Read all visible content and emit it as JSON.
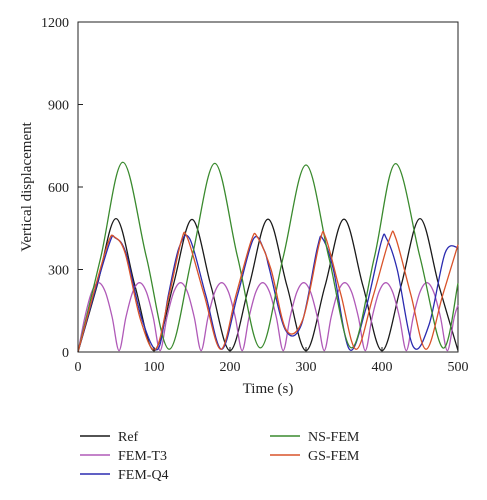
{
  "chart_data": {
    "type": "line",
    "xlabel": "Time (s)",
    "ylabel": "Vertical displacement",
    "xlim": [
      0,
      500
    ],
    "ylim": [
      0,
      1200
    ],
    "xticks": [
      0,
      100,
      200,
      300,
      400,
      500
    ],
    "yticks": [
      0,
      300,
      600,
      900,
      1200
    ],
    "grid": false,
    "legend_position": "bottom",
    "series": [
      {
        "name": "Ref",
        "color": "#1a1a1a",
        "x": [
          0,
          25,
          50,
          75,
          100,
          125,
          150,
          175,
          200,
          225,
          250,
          275,
          300,
          325,
          350,
          375,
          400,
          425,
          450,
          475,
          500
        ],
        "y": [
          0,
          240,
          485,
          240,
          5,
          240,
          482,
          240,
          5,
          240,
          483,
          240,
          5,
          240,
          483,
          240,
          5,
          240,
          485,
          240,
          5
        ]
      },
      {
        "name": "FEM-T3",
        "color": "#b05ab8",
        "x": [
          0,
          9,
          18,
          27,
          36,
          45,
          54,
          63,
          72,
          81,
          90,
          99,
          108,
          117,
          126,
          135,
          144,
          153,
          162,
          171,
          180,
          189,
          198,
          207,
          216,
          225,
          234,
          243,
          252,
          261,
          270,
          279,
          288,
          297,
          306,
          315,
          324,
          333,
          342,
          351,
          360,
          369,
          378,
          387,
          396,
          405,
          414,
          423,
          432,
          441,
          450,
          459,
          468,
          477,
          486,
          495,
          500
        ],
        "y": [
          0,
          126,
          218,
          252,
          218,
          126,
          5,
          126,
          218,
          252,
          218,
          126,
          5,
          126,
          218,
          252,
          218,
          126,
          5,
          126,
          218,
          252,
          218,
          126,
          5,
          126,
          218,
          252,
          218,
          126,
          5,
          126,
          218,
          252,
          218,
          126,
          5,
          126,
          218,
          252,
          218,
          126,
          5,
          126,
          218,
          252,
          218,
          126,
          5,
          126,
          218,
          252,
          218,
          126,
          5,
          126,
          170
        ]
      },
      {
        "name": "FEM-Q4",
        "color": "#2b2bb0",
        "x": [
          0,
          21,
          42,
          49,
          63,
          84,
          105,
          119,
          133,
          147,
          168,
          189,
          210,
          231,
          245,
          252,
          273,
          294,
          315,
          322,
          336,
          357,
          378,
          399,
          406,
          420,
          441,
          462,
          483,
          500
        ],
        "y": [
          0,
          208,
          400,
          415,
          360,
          120,
          10,
          208,
          380,
          412,
          208,
          10,
          208,
          412,
          370,
          300,
          80,
          100,
          380,
          412,
          300,
          10,
          150,
          400,
          412,
          300,
          20,
          100,
          360,
          380
        ]
      },
      {
        "name": "NS-FEM",
        "color": "#3a8a2e",
        "x": [
          0,
          30,
          59,
          90,
          120,
          150,
          180,
          210,
          240,
          270,
          300,
          330,
          360,
          390,
          418,
          450,
          480,
          500
        ],
        "y": [
          0,
          345,
          690,
          345,
          10,
          345,
          686,
          345,
          15,
          345,
          680,
          345,
          15,
          345,
          685,
          345,
          15,
          250
        ]
      },
      {
        "name": "GS-FEM",
        "color": "#d9532a",
        "x": [
          0,
          20,
          40,
          48,
          62,
          82,
          102,
          120,
          136,
          144,
          166,
          188,
          208,
          228,
          236,
          254,
          274,
          296,
          318,
          326,
          346,
          366,
          388,
          410,
          418,
          438,
          458,
          480,
          500
        ],
        "y": [
          0,
          208,
          400,
          418,
          360,
          120,
          10,
          208,
          405,
          415,
          208,
          10,
          208,
          405,
          418,
          300,
          80,
          120,
          400,
          415,
          208,
          10,
          200,
          412,
          415,
          208,
          10,
          208,
          390
        ]
      }
    ]
  }
}
